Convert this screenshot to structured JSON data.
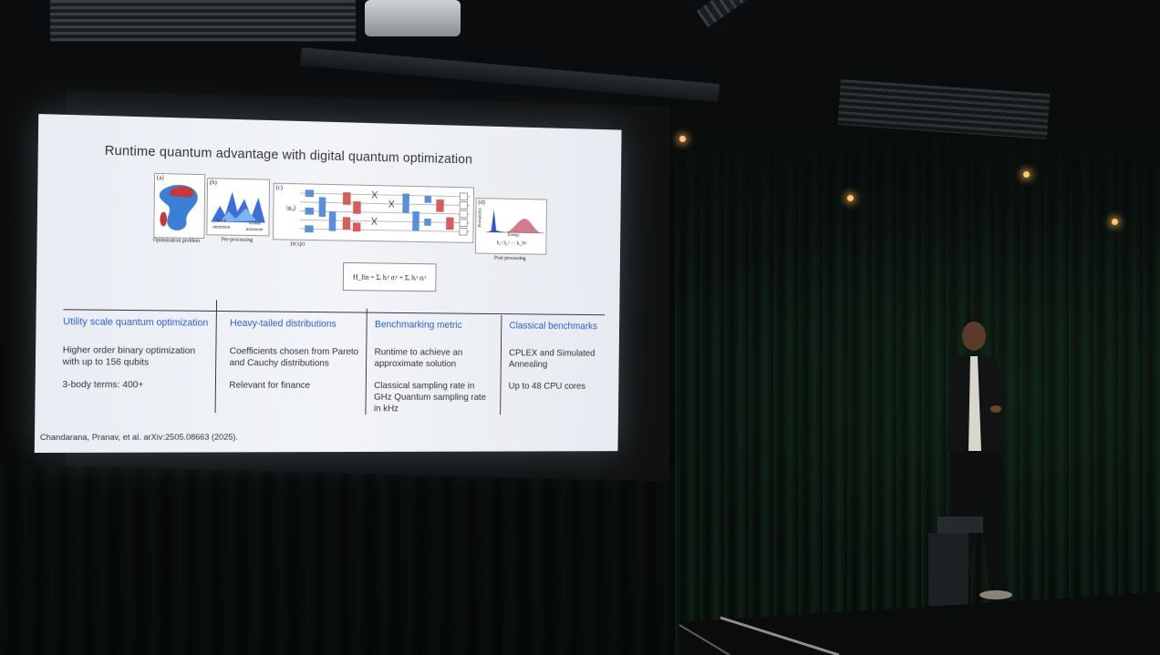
{
  "slide": {
    "title": "Runtime quantum advantage with digital quantum optimization",
    "figure": {
      "panel_a_letter": "(a)",
      "panel_a_caption": "Optimization problem",
      "panel_b_letter": "(b)",
      "panel_b_local": "Local minimum",
      "panel_b_global": "Global minimum",
      "panel_b_caption": "Pre-processing",
      "panel_c_letter": "(c)",
      "panel_c_state": "|ψ₀⟩",
      "panel_c_caption": "DCQO",
      "panel_d_letter": "(d)",
      "panel_d_ylabel": "Probability",
      "panel_d_xlabel": "Energy",
      "panel_d_fields": "h₁ᶻ  h₂ᶻ  ···  h_Nᶻ",
      "panel_d_caption": "Post-processing",
      "hamiltonian": "H_fin = Σᵢ hᵢᶻ σᵢᶻ + Σᵢ hᵢˣ σᵢˣ"
    },
    "columns": [
      {
        "heading": "Utility scale quantum optimization",
        "text1": "Higher order binary optimization with up to 156 qubits",
        "text2": "3-body terms: 400+"
      },
      {
        "heading": "Heavy-tailed distributions",
        "text1": "Coefficients chosen from Pareto and Cauchy distributions",
        "text2": "Relevant for finance"
      },
      {
        "heading": "Benchmarking metric",
        "text1": "Runtime to achieve an approximate solution",
        "text2": "Classical sampling rate in GHz Quantum sampling rate in kHz"
      },
      {
        "heading": "Classical benchmarks",
        "text1": "CPLEX and Simulated Annealing",
        "text2": "Up to 48 CPU cores"
      }
    ],
    "citation": "Chandarana, Pranav, et al. arXiv:2505.08663 (2025)."
  },
  "colors": {
    "slide_bg": "#eef1f6",
    "heading_blue": "#2b5fd1",
    "room_dark": "#07090a",
    "curtain_green": "#16301f",
    "lamp": "#ffc66a"
  }
}
